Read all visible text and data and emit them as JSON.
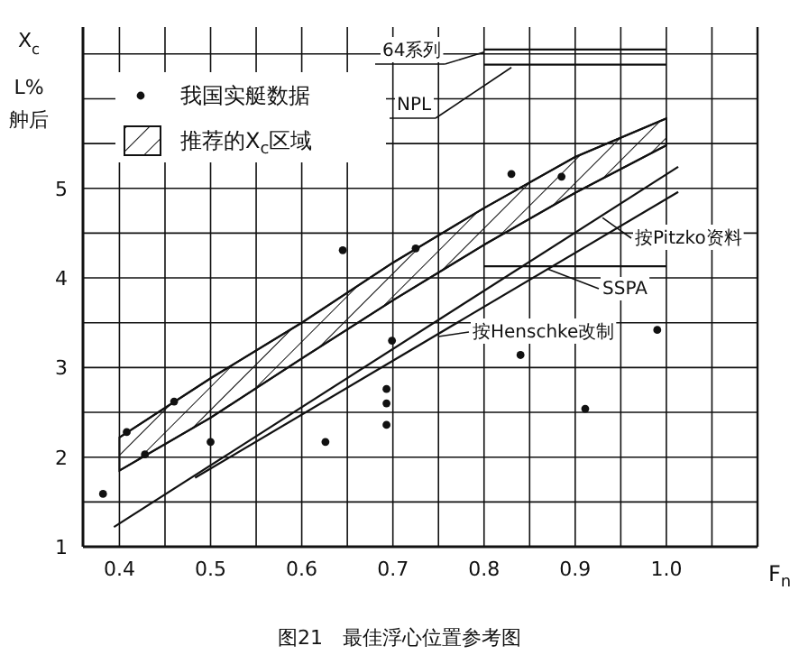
{
  "chart_data": {
    "type": "line",
    "ylabel": "X$_{c}$\nL%\n舯后",
    "xlabel": "F$_{n}$",
    "annotations": [
      "图21　最佳浮心位置参考图"
    ],
    "xlim": [
      0.36,
      1.1
    ],
    "ylim": [
      1,
      6.8
    ],
    "xticks": [
      0.4,
      {
        "value": 0.45,
        "label": null
      },
      0.5,
      {
        "value": 0.55,
        "label": null
      },
      0.6,
      {
        "value": 0.65,
        "label": null
      },
      0.7,
      {
        "value": 0.75,
        "label": null
      },
      0.8,
      {
        "value": 0.85,
        "label": null
      },
      0.9,
      {
        "value": 0.95,
        "label": null
      },
      {
        "value": 1,
        "label": "1.0"
      },
      {
        "value": 1.05,
        "label": null
      }
    ],
    "yticks": [
      1,
      {
        "value": 1.5,
        "label": null
      },
      2,
      {
        "value": 2.5,
        "label": null
      },
      3,
      {
        "value": 3.5,
        "label": null
      },
      4,
      {
        "value": 4.5,
        "label": null
      },
      5,
      {
        "value": 5.5,
        "label": null
      },
      {
        "value": 6,
        "label": null
      },
      {
        "value": 6.5,
        "label": null
      }
    ],
    "grid": true,
    "legend": "top left",
    "color": "#111111",
    "series": [
      {
        "type": "scatter",
        "name": "我国实艇数据",
        "marker": "circle",
        "x": [
          0.382,
          0.408,
          0.428,
          0.46,
          0.5,
          0.626,
          0.645,
          0.693,
          0.693,
          0.693,
          0.699,
          0.725,
          0.83,
          0.84,
          0.885,
          0.911,
          0.99
        ],
        "values": [
          1.59,
          2.28,
          2.03,
          2.62,
          2.17,
          2.17,
          4.31,
          2.36,
          2.6,
          2.76,
          3.3,
          4.33,
          5.16,
          3.14,
          5.13,
          2.54,
          3.42
        ]
      },
      {
        "type": "line",
        "x": [
          0.4,
          0.5,
          0.6,
          0.7,
          0.8,
          0.9,
          1.0
        ],
        "values": [
          1.85,
          2.44,
          3.1,
          3.75,
          4.37,
          4.95,
          5.48
        ]
      },
      {
        "type": "area",
        "name": "推荐的X$_{c}$区域",
        "x": [
          0.4,
          0.5,
          0.6,
          0.7,
          0.8,
          0.9,
          1.0
        ],
        "values": [
          2.22,
          2.88,
          3.5,
          4.17,
          4.78,
          5.35,
          5.78
        ]
      },
      {
        "name": "按Pitzko资料",
        "x": [
          0.394,
          1.013
        ],
        "values": [
          1.22,
          5.24
        ]
      },
      {
        "name": "按Henschke改制",
        "x": [
          0.483,
          1.013
        ],
        "values": [
          1.77,
          4.96
        ]
      },
      {
        "name": "64系列",
        "x": [
          0.8,
          1.0
        ],
        "values": [
          6.55,
          6.55
        ]
      },
      {
        "name": "NPL",
        "x": [
          0.8,
          1.0
        ],
        "values": [
          6.38,
          6.38
        ]
      },
      {
        "name": "SSPA",
        "x": [
          0.8,
          1.0
        ],
        "values": [
          4.13,
          4.13
        ]
      }
    ]
  }
}
